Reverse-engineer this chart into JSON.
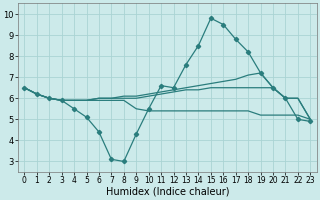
{
  "title": "",
  "xlabel": "Humidex (Indice chaleur)",
  "x": [
    0,
    1,
    2,
    3,
    4,
    5,
    6,
    7,
    8,
    9,
    10,
    11,
    12,
    13,
    14,
    15,
    16,
    17,
    18,
    19,
    20,
    21,
    22,
    23
  ],
  "line1": [
    6.5,
    6.2,
    6.0,
    5.9,
    5.5,
    5.1,
    4.4,
    3.1,
    3.0,
    4.3,
    5.5,
    6.6,
    6.5,
    7.6,
    8.5,
    9.8,
    9.5,
    8.8,
    8.2,
    7.2,
    6.5,
    6.0,
    5.0,
    4.9
  ],
  "line2": [
    6.5,
    6.2,
    6.0,
    5.9,
    5.9,
    5.9,
    5.9,
    5.9,
    5.9,
    5.5,
    5.4,
    5.4,
    5.4,
    5.4,
    5.4,
    5.4,
    5.4,
    5.4,
    5.4,
    5.2,
    5.2,
    5.2,
    5.2,
    5.0
  ],
  "line3": [
    6.5,
    6.2,
    6.0,
    5.9,
    5.9,
    5.9,
    6.0,
    6.0,
    6.0,
    6.0,
    6.1,
    6.2,
    6.3,
    6.4,
    6.4,
    6.5,
    6.5,
    6.5,
    6.5,
    6.5,
    6.5,
    6.0,
    6.0,
    5.0
  ],
  "line4": [
    6.5,
    6.2,
    6.0,
    5.9,
    5.9,
    5.9,
    6.0,
    6.0,
    6.1,
    6.1,
    6.2,
    6.3,
    6.4,
    6.5,
    6.6,
    6.7,
    6.8,
    6.9,
    7.1,
    7.2,
    6.5,
    6.0,
    6.0,
    5.0
  ],
  "line_color": "#2a7d7d",
  "bg_color": "#cceaea",
  "grid_color": "#aad4d4",
  "ylim": [
    2.5,
    10.5
  ],
  "yticks": [
    3,
    4,
    5,
    6,
    7,
    8,
    9,
    10
  ],
  "xticks": [
    0,
    1,
    2,
    3,
    4,
    5,
    6,
    7,
    8,
    9,
    10,
    11,
    12,
    13,
    14,
    15,
    16,
    17,
    18,
    19,
    20,
    21,
    22,
    23
  ]
}
